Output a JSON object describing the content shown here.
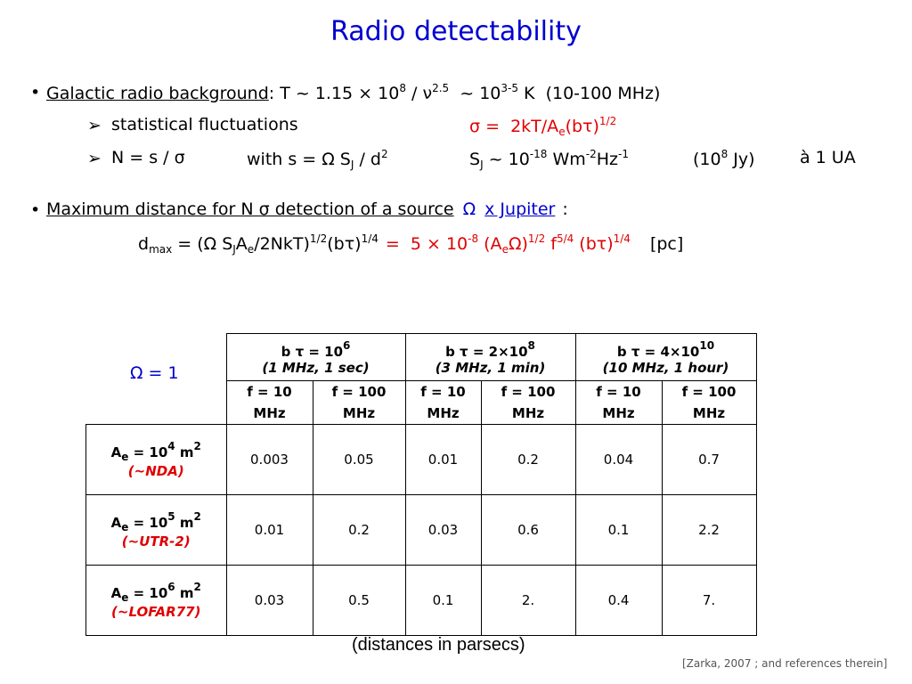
{
  "title": "Radio detectability",
  "lines": [
    [
      "Galactic radio background",
      ": T ~ 1.15 × 10",
      "8",
      " / ν",
      "2.5",
      "  ~ 10",
      "3-5",
      " K  (10-100 MHz)"
    ],
    [
      "statistical fluctuations",
      "σ =  2kT/A",
      "e",
      "(bτ)",
      "1/2"
    ],
    [
      "N = s / σ",
      "with s = Ω S",
      "J",
      " / d",
      "2",
      "S",
      "J",
      " ~ 10",
      "-18",
      " Wm",
      "-2",
      "Hz",
      "-1",
      "(10",
      "8",
      " Jy)",
      "à 1 UA"
    ],
    [
      "Maximum distance for N σ detection of a source",
      "Ω",
      "x Jupiter",
      ":"
    ],
    [
      "d",
      "max",
      " = (Ω S",
      "J",
      "A",
      "e",
      "/2NkT)",
      "1/2",
      "(bτ)",
      "1/4",
      "=  5 × 10",
      "-8",
      " (A",
      "e",
      "Ω)",
      "1/2",
      " f",
      "5/4",
      " (bτ)",
      "1/4",
      "[pc]"
    ]
  ],
  "table": {
    "corner": "Ω = 1",
    "groups": [
      {
        "label": [
          "b τ = 10",
          "6"
        ],
        "note": "(1 MHz, 1 sec)"
      },
      {
        "label": [
          "b τ = 2×10",
          "8"
        ],
        "note": "(3 MHz, 1 min)"
      },
      {
        "label": [
          "b τ = 4×10",
          "10"
        ],
        "note": "(10 MHz, 1 hour)"
      }
    ],
    "freqs": [
      "f = 10 MHz",
      "f = 100 MHz",
      "f = 10 MHz",
      "f = 100 MHz",
      "f = 10 MHz",
      "f = 100 MHz"
    ],
    "rows": [
      {
        "area": [
          "A",
          "e",
          " = 10",
          "4",
          " m",
          "2"
        ],
        "name": "(~NDA)",
        "values": [
          "0.003",
          "0.05",
          "0.01",
          "0.2",
          "0.04",
          "0.7"
        ]
      },
      {
        "area": [
          "A",
          "e",
          " = 10",
          "5",
          " m",
          "2"
        ],
        "name": "(~UTR-2)",
        "values": [
          "0.01",
          "0.2",
          "0.03",
          "0.6",
          "0.1",
          "2.2"
        ]
      },
      {
        "area": [
          "A",
          "e",
          " = 10",
          "6",
          " m",
          "2"
        ],
        "name": "(~LOFAR77)",
        "values": [
          "0.03",
          "0.5",
          "0.1",
          "2.",
          "0.4",
          "7."
        ]
      }
    ]
  },
  "caption": "(distances in parsecs)",
  "citation": "[Zarka, 2007 ; and references therein]"
}
